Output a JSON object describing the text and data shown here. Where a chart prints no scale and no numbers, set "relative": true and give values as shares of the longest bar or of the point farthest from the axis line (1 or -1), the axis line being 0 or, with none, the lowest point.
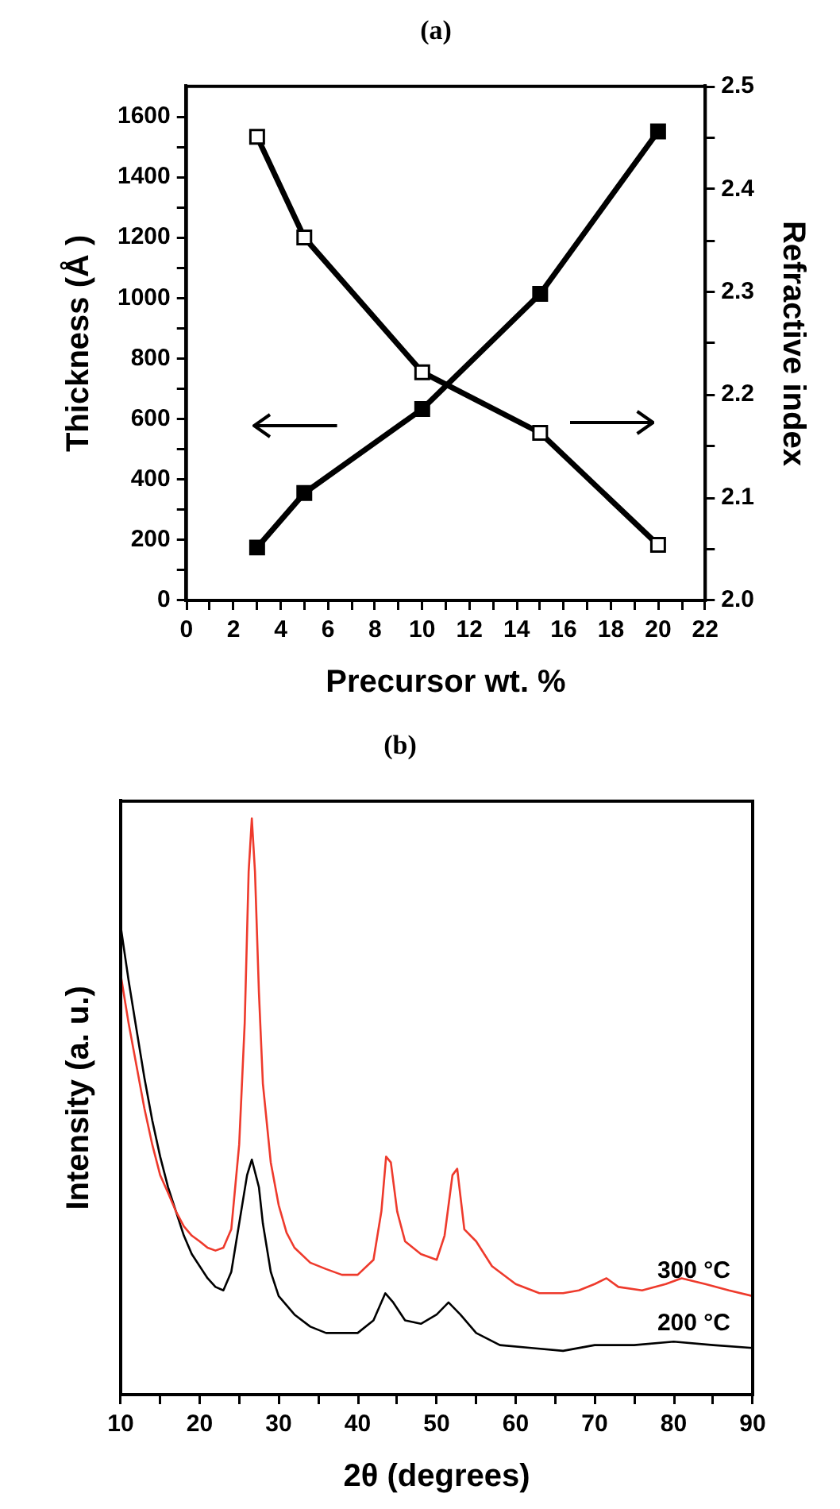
{
  "chart_data": [
    {
      "type": "line",
      "title": "(a)",
      "xlabel": "Precursor wt. %",
      "ylabel": "Thickness (Å )",
      "y2label": "Refractive index",
      "x": [
        3,
        5,
        10,
        15,
        20
      ],
      "series": [
        {
          "color": "#000000",
          "values": [
            175,
            355,
            633,
            1014,
            1551
          ]
        },
        {
          "color": "#000000",
          "axis": "y2",
          "values": [
            2.451,
            2.353,
            2.222,
            2.163,
            2.054
          ]
        }
      ],
      "xlim": [
        0,
        22
      ],
      "xticks": [
        0,
        {
          "value": 1,
          "label": null
        },
        2,
        {
          "value": 3,
          "label": null
        },
        4,
        {
          "value": 5,
          "label": null
        },
        6,
        {
          "value": 7,
          "label": null
        },
        8,
        {
          "value": 9,
          "label": null
        },
        10,
        {
          "value": 11,
          "label": null
        },
        12,
        {
          "value": 13,
          "label": null
        },
        14,
        {
          "value": 15,
          "label": null
        },
        16,
        {
          "value": 17,
          "label": null
        },
        18,
        {
          "value": 19,
          "label": null
        },
        20,
        {
          "value": 21,
          "label": null
        },
        22
      ],
      "ylim": [
        0,
        1700
      ],
      "yticks": [
        0,
        {
          "value": 100,
          "label": null
        },
        200,
        {
          "value": 300,
          "label": null
        },
        400,
        {
          "value": 500,
          "label": null
        },
        600,
        {
          "value": 700,
          "label": null
        },
        800,
        {
          "value": 900,
          "label": null
        },
        1000,
        {
          "value": 1100,
          "label": null
        },
        1200,
        {
          "value": 1300,
          "label": null
        },
        1400,
        {
          "value": 1500,
          "label": null
        },
        1600
      ],
      "y2lim": [
        2.0,
        2.5
      ],
      "y2ticks": [
        {
          "value": 2.0,
          "label": "2.0"
        },
        {
          "value": 2.05,
          "label": null
        },
        2.1,
        {
          "value": 2.15,
          "label": null
        },
        2.2,
        {
          "value": 2.25,
          "label": null
        },
        2.3,
        {
          "value": 2.35,
          "label": null
        },
        2.4,
        {
          "value": 2.45,
          "label": null
        },
        2.5
      ],
      "marker": "square",
      "line_style": "solid",
      "grid": false,
      "legend": false
    },
    {
      "type": "line",
      "title": "(b)",
      "xlabel": "2θ (degrees)",
      "ylabel": "Intensity (a. u.)",
      "relative": true,
      "tick_labels": "x",
      "series": [
        {
          "name": "300 °C",
          "color": "#ee3a2c",
          "x": [
            10,
            11,
            12,
            13,
            14,
            15,
            16,
            17,
            18,
            19,
            20,
            21,
            22,
            23,
            24,
            25,
            25.7,
            26.2,
            26.6,
            27,
            27.5,
            28,
            29,
            30,
            31,
            32,
            34,
            36,
            38,
            40,
            42,
            43,
            43.6,
            44.2,
            45,
            46,
            48,
            50,
            51,
            52,
            52.6,
            53.5,
            55,
            57,
            60,
            63,
            66,
            68,
            70,
            71.5,
            73,
            76,
            79,
            81,
            84,
            87,
            90
          ],
          "values": [
            0.729,
            0.645,
            0.571,
            0.497,
            0.434,
            0.381,
            0.35,
            0.318,
            0.292,
            0.276,
            0.266,
            0.255,
            0.25,
            0.255,
            0.287,
            0.434,
            0.645,
            0.908,
            1.0,
            0.908,
            0.698,
            0.54,
            0.403,
            0.329,
            0.281,
            0.255,
            0.229,
            0.218,
            0.208,
            0.208,
            0.234,
            0.318,
            0.413,
            0.403,
            0.318,
            0.266,
            0.244,
            0.234,
            0.276,
            0.381,
            0.392,
            0.287,
            0.266,
            0.223,
            0.192,
            0.176,
            0.176,
            0.181,
            0.192,
            0.202,
            0.187,
            0.181,
            0.192,
            0.202,
            0.192,
            0.181,
            0.171
          ]
        },
        {
          "name": "200 °C",
          "color": "#000000",
          "x": [
            10,
            11,
            12,
            13,
            14,
            15,
            16,
            17,
            18,
            19,
            20,
            21,
            22,
            23,
            24,
            25,
            26,
            26.6,
            27.5,
            28,
            29,
            30,
            32,
            34,
            36,
            38,
            40,
            42,
            43.5,
            44.5,
            46,
            48,
            50,
            51.5,
            53,
            55,
            58,
            62,
            66,
            70,
            75,
            80,
            85,
            90
          ],
          "values": [
            0.813,
            0.719,
            0.634,
            0.55,
            0.476,
            0.413,
            0.36,
            0.318,
            0.276,
            0.244,
            0.223,
            0.202,
            0.187,
            0.181,
            0.213,
            0.297,
            0.381,
            0.408,
            0.36,
            0.297,
            0.213,
            0.171,
            0.139,
            0.118,
            0.107,
            0.107,
            0.107,
            0.129,
            0.176,
            0.16,
            0.129,
            0.123,
            0.139,
            0.16,
            0.139,
            0.107,
            0.086,
            0.081,
            0.076,
            0.086,
            0.086,
            0.092,
            0.086,
            0.081
          ]
        }
      ],
      "xlim": [
        10,
        90
      ],
      "xticks": [
        10,
        {
          "value": 15,
          "label": null
        },
        20,
        {
          "value": 25,
          "label": null
        },
        30,
        {
          "value": 35,
          "label": null
        },
        40,
        {
          "value": 45,
          "label": null
        },
        50,
        {
          "value": 55,
          "label": null
        },
        60,
        {
          "value": 65,
          "label": null
        },
        70,
        {
          "value": 75,
          "label": null
        },
        80,
        {
          "value": 85,
          "label": null
        },
        90
      ],
      "marker": "none",
      "line_style": "solid",
      "grid": false,
      "legend": false
    }
  ]
}
